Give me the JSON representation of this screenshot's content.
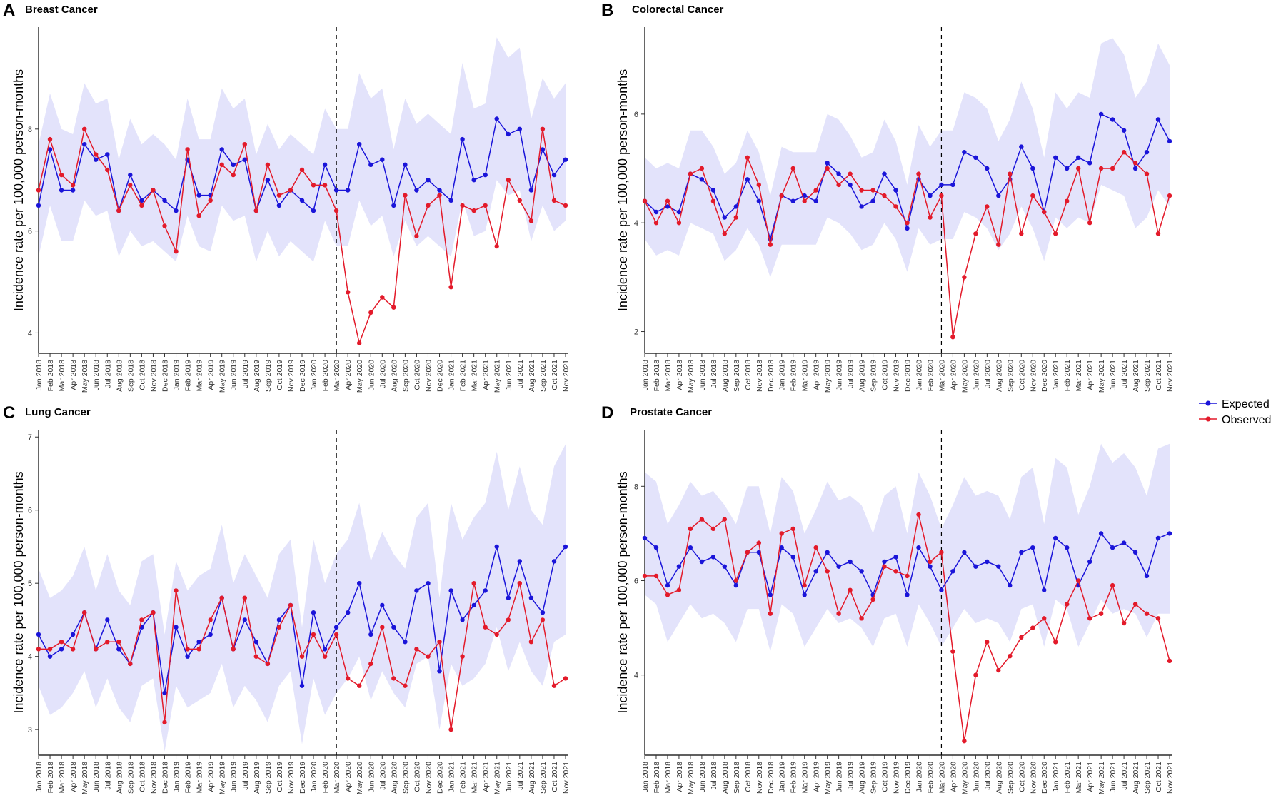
{
  "months": [
    "Jan 2018",
    "Feb 2018",
    "Mar 2018",
    "Apr 2018",
    "May 2018",
    "Jun 2018",
    "Jul 2018",
    "Aug 2018",
    "Sep 2018",
    "Oct 2018",
    "Nov 2018",
    "Dec 2018",
    "Jan 2019",
    "Feb 2019",
    "Mar 2019",
    "Apr 2019",
    "May 2019",
    "Jun 2019",
    "Jul 2019",
    "Aug 2019",
    "Sep 2019",
    "Oct 2019",
    "Nov 2019",
    "Dec 2019",
    "Jan 2020",
    "Feb 2020",
    "Mar 2020",
    "Apr 2020",
    "May 2020",
    "Jun 2020",
    "Jul 2020",
    "Aug 2020",
    "Sep 2020",
    "Oct 2020",
    "Nov 2020",
    "Dec 2020",
    "Jan 2021",
    "Feb 2021",
    "Mar 2021",
    "Apr 2021",
    "May 2021",
    "Jun 2021",
    "Jul 2021",
    "Aug 2021",
    "Sep 2021",
    "Oct 2021",
    "Nov 2021"
  ],
  "legend": [
    {
      "label": "Expected",
      "color": "#1a14d9"
    },
    {
      "label": "Observed",
      "color": "#e31a2a"
    }
  ],
  "colors": {
    "expected": "#1a14d9",
    "observed": "#e31a2a",
    "band": "#e3e3fb"
  },
  "chart_data": [
    {
      "letter": "A",
      "title": "Breast Cancer",
      "type": "line",
      "ylabel": "Incidence rate per 100,000 person-months",
      "ylim": [
        3.6,
        10.0
      ],
      "yticks": [
        4,
        6,
        8
      ],
      "vline_category": "Mar 2020",
      "series": [
        {
          "name": "Expected",
          "values": [
            6.5,
            7.6,
            6.8,
            6.8,
            7.7,
            7.4,
            7.5,
            6.4,
            7.1,
            6.6,
            6.8,
            6.6,
            6.4,
            7.4,
            6.7,
            6.7,
            7.6,
            7.3,
            7.4,
            6.4,
            7.0,
            6.5,
            6.8,
            6.6,
            6.4,
            7.3,
            6.8,
            6.8,
            7.7,
            7.3,
            7.4,
            6.5,
            7.3,
            6.8,
            7.0,
            6.8,
            6.6,
            7.8,
            7.0,
            7.1,
            8.2,
            7.9,
            8.0,
            6.8,
            7.6,
            7.1,
            7.4
          ]
        },
        {
          "name": "Observed",
          "values": [
            6.8,
            7.8,
            7.1,
            6.9,
            8.0,
            7.5,
            7.2,
            6.4,
            6.9,
            6.5,
            6.8,
            6.1,
            5.6,
            7.6,
            6.3,
            6.6,
            7.3,
            7.1,
            7.7,
            6.4,
            7.3,
            6.7,
            6.8,
            7.2,
            6.9,
            6.9,
            6.4,
            4.8,
            3.8,
            4.4,
            4.7,
            4.5,
            6.7,
            5.9,
            6.5,
            6.7,
            4.9,
            6.5,
            6.4,
            6.5,
            5.7,
            7.0,
            6.6,
            6.2,
            8.0,
            6.6,
            6.5
          ]
        },
        {
          "name": "Band lower",
          "values": [
            5.5,
            6.5,
            5.8,
            5.8,
            6.6,
            6.3,
            6.4,
            5.5,
            6.0,
            5.7,
            5.8,
            5.6,
            5.4,
            6.3,
            5.7,
            5.6,
            6.5,
            6.2,
            6.3,
            5.4,
            6.0,
            5.5,
            5.8,
            5.6,
            5.4,
            6.2,
            5.7,
            5.7,
            6.6,
            6.1,
            6.3,
            5.5,
            6.2,
            5.7,
            5.9,
            5.7,
            5.5,
            6.6,
            5.9,
            6.0,
            7.0,
            6.7,
            6.8,
            5.8,
            6.5,
            6.0,
            6.2
          ]
        },
        {
          "name": "Band upper",
          "values": [
            7.7,
            8.7,
            8.0,
            7.9,
            8.9,
            8.5,
            8.6,
            7.4,
            8.2,
            7.7,
            7.9,
            7.7,
            7.4,
            8.6,
            7.8,
            7.8,
            8.8,
            8.4,
            8.6,
            7.5,
            8.1,
            7.6,
            7.9,
            7.7,
            7.5,
            8.4,
            8.0,
            8.0,
            9.1,
            8.6,
            8.8,
            7.6,
            8.6,
            8.1,
            8.3,
            8.1,
            7.9,
            9.3,
            8.4,
            8.5,
            9.8,
            9.4,
            9.6,
            8.2,
            9.0,
            8.6,
            8.9
          ]
        }
      ]
    },
    {
      "letter": "B",
      "title": "Colorectal Cancer",
      "type": "line",
      "ylabel": "Incidence rate per 100,000 person-months",
      "ylim": [
        1.6,
        7.6
      ],
      "yticks": [
        2,
        4,
        6
      ],
      "vline_category": "Mar 2020",
      "series": [
        {
          "name": "Expected",
          "values": [
            4.4,
            4.2,
            4.3,
            4.2,
            4.9,
            4.8,
            4.6,
            4.1,
            4.3,
            4.8,
            4.4,
            3.7,
            4.5,
            4.4,
            4.5,
            4.4,
            5.1,
            4.9,
            4.7,
            4.3,
            4.4,
            4.9,
            4.6,
            3.9,
            4.8,
            4.5,
            4.7,
            4.7,
            5.3,
            5.2,
            5.0,
            4.5,
            4.8,
            5.4,
            5.0,
            4.2,
            5.2,
            5.0,
            5.2,
            5.1,
            6.0,
            5.9,
            5.7,
            5.0,
            5.3,
            5.9,
            5.5
          ]
        },
        {
          "name": "Observed",
          "values": [
            4.4,
            4.0,
            4.4,
            4.0,
            4.9,
            5.0,
            4.4,
            3.8,
            4.1,
            5.2,
            4.7,
            3.6,
            4.5,
            5.0,
            4.4,
            4.6,
            5.0,
            4.7,
            4.9,
            4.6,
            4.6,
            4.5,
            4.3,
            4.0,
            4.9,
            4.1,
            4.5,
            1.9,
            3.0,
            3.8,
            4.3,
            3.6,
            4.9,
            3.8,
            4.5,
            4.2,
            3.8,
            4.4,
            5.0,
            4.0,
            5.0,
            5.0,
            5.3,
            5.1,
            4.9,
            3.8,
            4.5
          ]
        },
        {
          "name": "Band lower",
          "values": [
            3.7,
            3.4,
            3.5,
            3.4,
            4.0,
            3.9,
            3.8,
            3.3,
            3.5,
            3.9,
            3.6,
            3.0,
            3.6,
            3.6,
            3.6,
            3.6,
            4.1,
            4.0,
            3.8,
            3.5,
            3.6,
            4.0,
            3.7,
            3.1,
            3.9,
            3.6,
            3.7,
            3.7,
            4.2,
            4.1,
            3.9,
            3.5,
            3.8,
            4.3,
            3.9,
            3.3,
            4.1,
            3.9,
            4.1,
            4.0,
            4.7,
            4.6,
            4.5,
            3.9,
            4.1,
            4.6,
            4.3
          ]
        },
        {
          "name": "Band upper",
          "values": [
            5.2,
            5.0,
            5.1,
            5.0,
            5.7,
            5.7,
            5.4,
            4.9,
            5.1,
            5.7,
            5.3,
            4.5,
            5.4,
            5.3,
            5.3,
            5.3,
            6.0,
            5.9,
            5.6,
            5.2,
            5.3,
            5.9,
            5.5,
            4.7,
            5.8,
            5.4,
            5.7,
            5.7,
            6.4,
            6.3,
            6.1,
            5.5,
            5.9,
            6.6,
            6.1,
            5.2,
            6.4,
            6.1,
            6.4,
            6.3,
            7.3,
            7.4,
            7.1,
            6.3,
            6.6,
            7.3,
            6.9
          ]
        }
      ]
    },
    {
      "letter": "C",
      "title": "Lung Cancer",
      "type": "line",
      "ylabel": "Incidence rate per 100,000 person-months",
      "ylim": [
        2.65,
        7.1
      ],
      "yticks": [
        3,
        4,
        5,
        6,
        7
      ],
      "vline_category": "Mar 2020",
      "series": [
        {
          "name": "Expected",
          "values": [
            4.3,
            4.0,
            4.1,
            4.3,
            4.6,
            4.1,
            4.5,
            4.1,
            3.9,
            4.4,
            4.6,
            3.5,
            4.4,
            4.0,
            4.2,
            4.3,
            4.8,
            4.1,
            4.5,
            4.2,
            3.9,
            4.5,
            4.7,
            3.6,
            4.6,
            4.1,
            4.4,
            4.6,
            5.0,
            4.3,
            4.7,
            4.4,
            4.2,
            4.9,
            5.0,
            3.8,
            4.9,
            4.5,
            4.7,
            4.9,
            5.5,
            4.8,
            5.3,
            4.8,
            4.6,
            5.3,
            5.5
          ]
        },
        {
          "name": "Observed",
          "values": [
            4.1,
            4.1,
            4.2,
            4.1,
            4.6,
            4.1,
            4.2,
            4.2,
            3.9,
            4.5,
            4.6,
            3.1,
            4.9,
            4.1,
            4.1,
            4.5,
            4.8,
            4.1,
            4.8,
            4.0,
            3.9,
            4.4,
            4.7,
            4.0,
            4.3,
            4.0,
            4.3,
            3.7,
            3.6,
            3.9,
            4.4,
            3.7,
            3.6,
            4.1,
            4.0,
            4.2,
            3.0,
            4.0,
            5.0,
            4.4,
            4.3,
            4.5,
            5.0,
            4.2,
            4.5,
            3.6,
            3.7
          ]
        },
        {
          "name": "Band lower",
          "values": [
            3.6,
            3.2,
            3.3,
            3.5,
            3.8,
            3.3,
            3.7,
            3.3,
            3.1,
            3.6,
            3.7,
            2.7,
            3.6,
            3.3,
            3.4,
            3.5,
            3.9,
            3.3,
            3.6,
            3.4,
            3.1,
            3.6,
            3.8,
            2.8,
            3.7,
            3.2,
            3.5,
            3.7,
            4.0,
            3.4,
            3.8,
            3.5,
            3.3,
            3.9,
            4.0,
            3.0,
            3.9,
            3.6,
            3.7,
            3.9,
            4.4,
            3.8,
            4.2,
            3.8,
            3.6,
            4.2,
            4.3
          ]
        },
        {
          "name": "Band upper",
          "values": [
            5.2,
            4.8,
            4.9,
            5.1,
            5.5,
            4.9,
            5.4,
            4.9,
            4.7,
            5.3,
            5.4,
            4.3,
            5.3,
            4.9,
            5.1,
            5.2,
            5.8,
            5.0,
            5.4,
            5.1,
            4.8,
            5.4,
            5.6,
            4.4,
            5.6,
            5.0,
            5.4,
            5.6,
            6.1,
            5.3,
            5.7,
            5.4,
            5.2,
            5.9,
            6.1,
            4.8,
            6.1,
            5.6,
            5.9,
            6.1,
            6.8,
            6.0,
            6.6,
            6.0,
            5.8,
            6.6,
            6.9
          ]
        }
      ]
    },
    {
      "letter": "D",
      "title": "Prostate Cancer",
      "type": "line",
      "ylabel": "Incidence rate per 100,000 person-months",
      "ylim": [
        2.3,
        9.2
      ],
      "yticks": [
        4,
        6,
        8
      ],
      "vline_category": "Mar 2020",
      "series": [
        {
          "name": "Expected",
          "values": [
            6.9,
            6.7,
            5.9,
            6.3,
            6.7,
            6.4,
            6.5,
            6.3,
            5.9,
            6.6,
            6.6,
            5.7,
            6.7,
            6.5,
            5.7,
            6.2,
            6.6,
            6.3,
            6.4,
            6.2,
            5.7,
            6.4,
            6.5,
            5.7,
            6.7,
            6.3,
            5.8,
            6.2,
            6.6,
            6.3,
            6.4,
            6.3,
            5.9,
            6.6,
            6.7,
            5.8,
            6.9,
            6.7,
            5.9,
            6.4,
            7.0,
            6.7,
            6.8,
            6.6,
            6.1,
            6.9,
            7.0
          ]
        },
        {
          "name": "Observed",
          "values": [
            6.1,
            6.1,
            5.7,
            5.8,
            7.1,
            7.3,
            7.1,
            7.3,
            6.0,
            6.6,
            6.8,
            5.3,
            7.0,
            7.1,
            5.9,
            6.7,
            6.2,
            5.3,
            5.8,
            5.2,
            5.6,
            6.3,
            6.2,
            6.1,
            7.4,
            6.4,
            6.6,
            4.5,
            2.6,
            4.0,
            4.7,
            4.1,
            4.4,
            4.8,
            5.0,
            5.2,
            4.7,
            5.5,
            6.0,
            5.2,
            5.3,
            5.9,
            5.1,
            5.5,
            5.3,
            5.2,
            4.3
          ]
        },
        {
          "name": "Band lower",
          "values": [
            5.7,
            5.5,
            4.7,
            5.1,
            5.5,
            5.2,
            5.3,
            5.1,
            4.7,
            5.4,
            5.4,
            4.5,
            5.5,
            5.3,
            4.6,
            5.0,
            5.4,
            5.1,
            5.2,
            5.0,
            4.6,
            5.2,
            5.3,
            4.6,
            5.5,
            5.1,
            4.6,
            5.0,
            5.4,
            5.1,
            5.2,
            5.1,
            4.7,
            5.4,
            5.5,
            4.6,
            5.6,
            5.4,
            4.6,
            5.1,
            5.6,
            5.3,
            5.4,
            5.3,
            4.8,
            5.3,
            5.3
          ]
        },
        {
          "name": "Band upper",
          "values": [
            8.3,
            8.1,
            7.2,
            7.6,
            8.1,
            7.8,
            7.9,
            7.6,
            7.2,
            8.0,
            8.0,
            7.0,
            8.2,
            7.9,
            7.0,
            7.5,
            8.1,
            7.7,
            7.8,
            7.6,
            7.0,
            7.8,
            8.0,
            7.0,
            8.3,
            7.8,
            7.1,
            7.6,
            8.2,
            7.8,
            7.9,
            7.8,
            7.3,
            8.2,
            8.4,
            7.2,
            8.6,
            8.4,
            7.4,
            8.0,
            8.9,
            8.5,
            8.7,
            8.4,
            7.8,
            8.8,
            8.9
          ]
        }
      ]
    }
  ]
}
